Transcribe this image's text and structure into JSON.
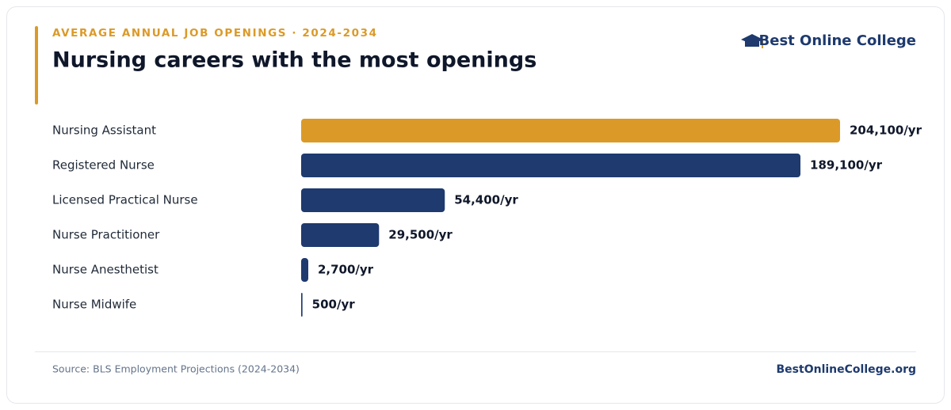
{
  "chart_data": {
    "type": "bar",
    "orientation": "horizontal",
    "subtitle": "AVERAGE ANNUAL JOB OPENINGS · 2024-2034",
    "title": "Nursing careers with the most openings",
    "categories": [
      "Nursing Assistant",
      "Registered Nurse",
      "Licensed Practical Nurse",
      "Nurse Practitioner",
      "Nurse Anesthetist",
      "Nurse Midwife"
    ],
    "values": [
      204100,
      189100,
      54400,
      29500,
      2700,
      500
    ],
    "value_labels": [
      "204,100/yr",
      "189,100/yr",
      "54,400/yr",
      "29,500/yr",
      "2,700/yr",
      "500/yr"
    ],
    "colors": [
      "#db9a28",
      "#1e3a6e",
      "#1e3a6e",
      "#1e3a6e",
      "#1e3a6e",
      "#1e3a6e"
    ]
  },
  "brand": "Best Online College",
  "footer": {
    "source": "Source: BLS Employment Projections (2024-2034)",
    "site": "BestOnlineCollege.org"
  }
}
